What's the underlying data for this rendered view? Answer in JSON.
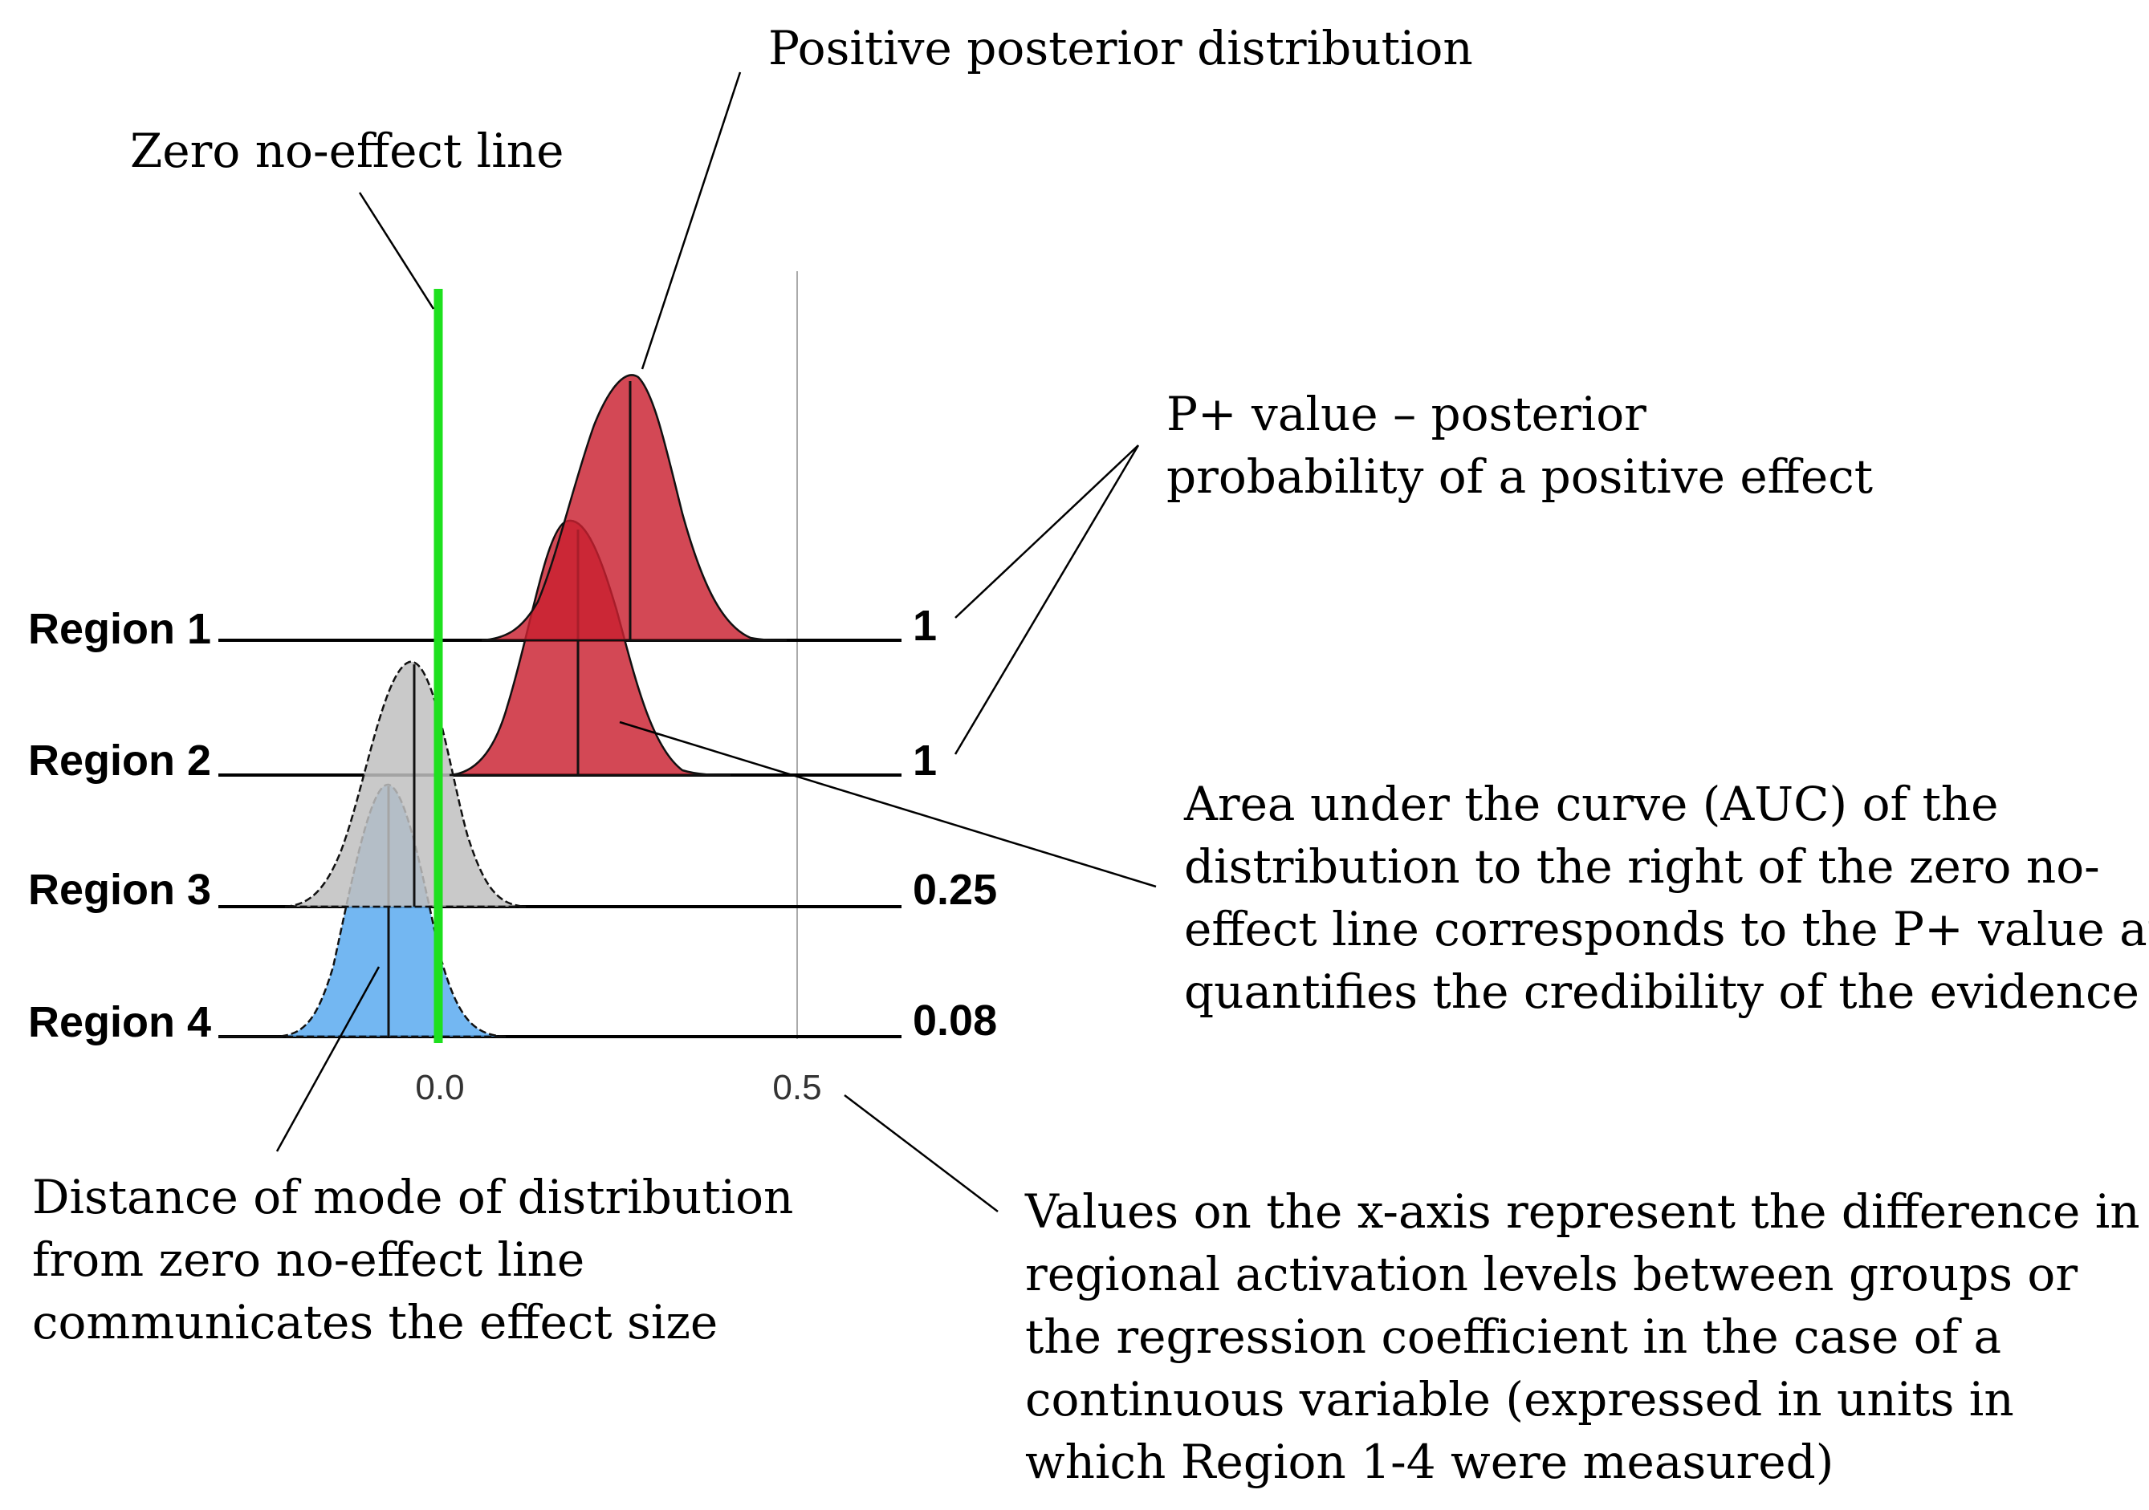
{
  "annotations": {
    "positive_posterior": [
      "Positive posterior distribution"
    ],
    "zero_line": [
      "Zero no-effect line"
    ],
    "p_plus": [
      "P+ value – posterior",
      "probability of a positive effect"
    ],
    "auc": [
      "Area under the curve (AUC) of the",
      "distribution to the right of the zero no-",
      "effect line corresponds to the P+ value and",
      "quantifies the credibility of the evidence"
    ],
    "mode_distance": [
      "Distance of mode of distribution",
      "from zero no-effect line",
      "communicates the effect size"
    ],
    "x_axis_values": [
      "Values on the x-axis represent the difference in",
      "regional activation levels between groups or",
      "the regression coefficient in the case of a",
      "continuous variable (expressed in units in",
      "which Region 1-4 were measured)"
    ]
  },
  "chart_data": {
    "type": "ridgeline",
    "x_ticks": [
      0.0,
      0.5
    ],
    "x_tick_labels": [
      "0.0",
      "0.5"
    ],
    "zero_line_color": "#1ee01e",
    "regions": [
      {
        "label": "Region 1",
        "p_plus": "1",
        "mode": 0.27,
        "color": "#c9202f"
      },
      {
        "label": "Region 2",
        "p_plus": "1",
        "mode": 0.2,
        "color": "#c9202f"
      },
      {
        "label": "Region 3",
        "p_plus": "0.25",
        "mode": -0.03,
        "color": "#c0c0c0"
      },
      {
        "label": "Region 4",
        "p_plus": "0.08",
        "mode": -0.07,
        "color": "#5aaaf0"
      }
    ]
  }
}
